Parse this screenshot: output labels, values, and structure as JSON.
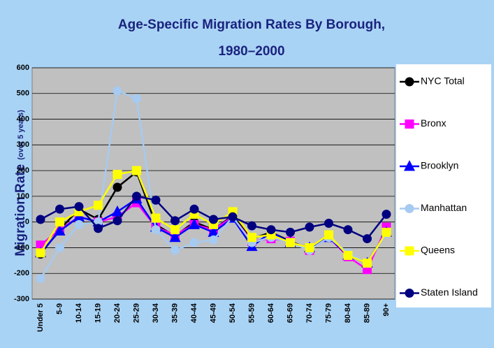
{
  "chart_data": {
    "type": "line",
    "title": [
      "Age-Specific Migration Rates By Borough,",
      "1980–2000"
    ],
    "ylabel": [
      "Migration Rate",
      "(over 5 years)"
    ],
    "categories": [
      "Under 5",
      "5-9",
      "10-14",
      "15-19",
      "20-24",
      "25-29",
      "30-34",
      "35-39",
      "40-44",
      "45-49",
      "50-54",
      "55-59",
      "60-64",
      "65-69",
      "70-74",
      "75-79",
      "80-84",
      "85-89",
      "90+"
    ],
    "series": [
      {
        "name": "NYC Total",
        "color": "#000000",
        "marker": "circle",
        "values": [
          -125,
          -30,
          50,
          10,
          135,
          195,
          -10,
          -55,
          0,
          -30,
          25,
          -65,
          -40,
          -75,
          -105,
          -60,
          -130,
          -160,
          -40
        ]
      },
      {
        "name": "Bronx",
        "color": "#ff00ff",
        "marker": "square",
        "values": [
          -90,
          -30,
          20,
          0,
          20,
          75,
          -20,
          -50,
          -10,
          -30,
          20,
          -75,
          -65,
          -75,
          -110,
          -60,
          -135,
          -185,
          -20
        ]
      },
      {
        "name": "Brooklyn",
        "color": "#0000ff",
        "marker": "triangle",
        "values": [
          -120,
          -35,
          20,
          0,
          40,
          90,
          -20,
          -60,
          -10,
          -40,
          15,
          -95,
          -40,
          -80,
          -100,
          -60,
          -130,
          -160,
          -40
        ]
      },
      {
        "name": "Manhattan",
        "color": "#a6caf0",
        "marker": "circle",
        "values": [
          -220,
          -100,
          -10,
          0,
          510,
          480,
          -30,
          -110,
          -80,
          -70,
          20,
          -80,
          -60,
          -80,
          -110,
          -60,
          -120,
          -160,
          -45
        ]
      },
      {
        "name": "Queens",
        "color": "#ffff00",
        "marker": "square",
        "values": [
          -120,
          0,
          40,
          65,
          185,
          200,
          15,
          -30,
          30,
          -10,
          40,
          -60,
          -50,
          -80,
          -100,
          -50,
          -130,
          -160,
          -40
        ]
      },
      {
        "name": "Staten Island",
        "color": "#000080",
        "marker": "circle",
        "values": [
          10,
          50,
          60,
          -25,
          5,
          100,
          85,
          5,
          50,
          10,
          20,
          -15,
          -30,
          -40,
          -20,
          -5,
          -30,
          -65,
          30
        ]
      }
    ],
    "ylim": [
      -300,
      600
    ],
    "yticks": [
      -300,
      -200,
      -100,
      0,
      100,
      200,
      300,
      400,
      500,
      600
    ],
    "grid": true
  }
}
